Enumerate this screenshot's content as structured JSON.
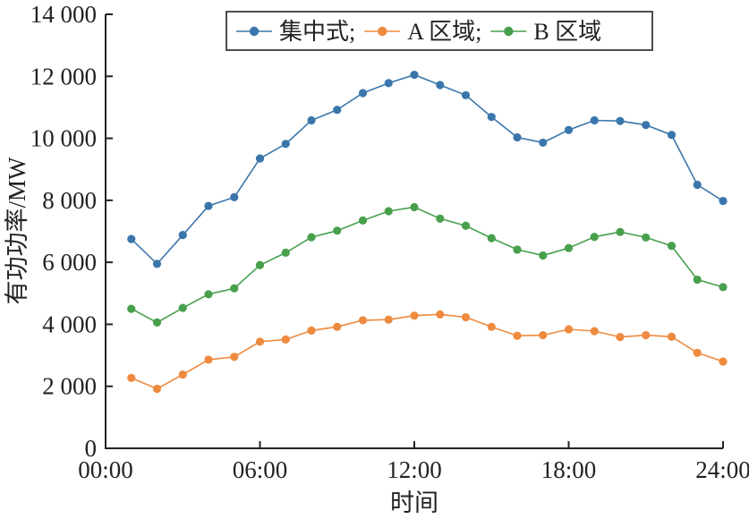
{
  "chart_data": {
    "type": "line",
    "xlabel": "时间",
    "ylabel": "有功功率/MW",
    "xlim": [
      0,
      24
    ],
    "ylim": [
      0,
      14000
    ],
    "x_ticks": [
      {
        "value": 0,
        "label": "00:00"
      },
      {
        "value": 6,
        "label": "06:00"
      },
      {
        "value": 12,
        "label": "12:00"
      },
      {
        "value": 18,
        "label": "18:00"
      },
      {
        "value": 24,
        "label": "24:00"
      }
    ],
    "y_ticks": [
      {
        "value": 0,
        "label": "0"
      },
      {
        "value": 2000,
        "label": "2 000"
      },
      {
        "value": 4000,
        "label": "4 000"
      },
      {
        "value": 6000,
        "label": "6 000"
      },
      {
        "value": 8000,
        "label": "8 000"
      },
      {
        "value": 10000,
        "label": "10 000"
      },
      {
        "value": 12000,
        "label": "12 000"
      },
      {
        "value": 14000,
        "label": "14 000"
      }
    ],
    "x": [
      1,
      2,
      3,
      4,
      5,
      6,
      7,
      8,
      9,
      10,
      11,
      12,
      13,
      14,
      15,
      16,
      17,
      18,
      19,
      20,
      21,
      22,
      23,
      24
    ],
    "series": [
      {
        "name": "集中式;",
        "color": "#3a76ab",
        "values": [
          6750,
          5950,
          6880,
          7820,
          8100,
          9350,
          9820,
          10580,
          10920,
          11460,
          11780,
          12050,
          11720,
          11390,
          10690,
          10030,
          9860,
          10270,
          10580,
          10560,
          10430,
          10110,
          8500,
          7980
        ]
      },
      {
        "name": "A 区域;",
        "color": "#ee8a3f",
        "values": [
          2270,
          1920,
          2380,
          2860,
          2950,
          3440,
          3510,
          3800,
          3920,
          4130,
          4150,
          4280,
          4320,
          4230,
          3920,
          3630,
          3650,
          3840,
          3780,
          3590,
          3650,
          3600,
          3080,
          2800
        ]
      },
      {
        "name": "B 区域",
        "color": "#48a04c",
        "values": [
          4500,
          4060,
          4530,
          4970,
          5160,
          5910,
          6310,
          6810,
          7020,
          7350,
          7650,
          7780,
          7410,
          7180,
          6780,
          6410,
          6220,
          6460,
          6820,
          6980,
          6800,
          6530,
          5440,
          5200
        ]
      }
    ]
  }
}
